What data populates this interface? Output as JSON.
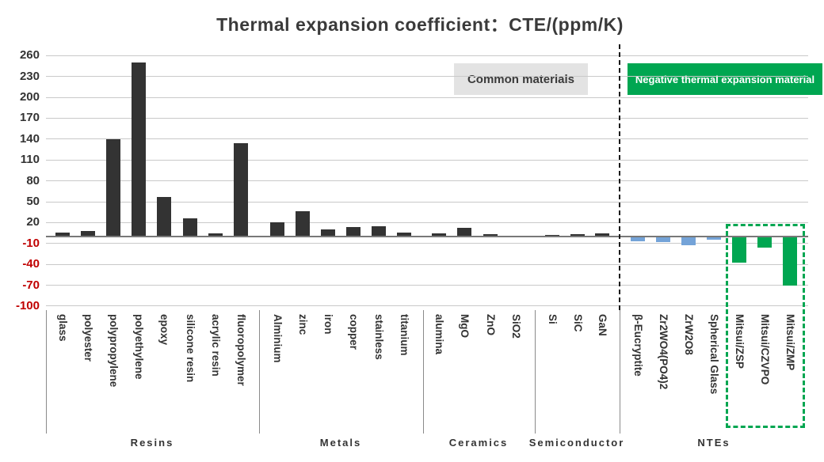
{
  "title": "Thermal expansion coefficient：CTE/(ppm/K)",
  "legend": {
    "common": {
      "label": "Common materials"
    },
    "negative": {
      "label": "Negative thermal expansion material"
    }
  },
  "colors": {
    "bar_dark": "#333333",
    "bar_blue": "#74a3d8",
    "bar_green": "#00a651",
    "grid": "#c9c9c9",
    "zero_line": "#787878",
    "tick_positive": "#333333",
    "tick_negative": "#c00000",
    "divider": "#8a8a8a",
    "dashed_divider": "#1a1a1a",
    "highlight_box": "#00a651",
    "legend_common_bg": "#e3e3e3",
    "legend_negative_bg": "#00a651"
  },
  "chart_data": {
    "type": "bar",
    "title": "Thermal expansion coefficient：CTE/(ppm/K)",
    "ylabel": "CTE (ppm/K)",
    "ylim": [
      -100,
      260
    ],
    "yticks": [
      260,
      230,
      200,
      170,
      140,
      110,
      80,
      50,
      20,
      -10,
      -40,
      -70,
      -100
    ],
    "grid": true,
    "legend_entries": [
      "Common materials",
      "Negative thermal expansion material"
    ],
    "groups": [
      {
        "label": "Resins",
        "bars": [
          {
            "label": "glass",
            "value": 6,
            "series": "common"
          },
          {
            "label": "polyester",
            "value": 8,
            "series": "common"
          },
          {
            "label": "polypropylene",
            "value": 140,
            "series": "common"
          },
          {
            "label": "polyethylene",
            "value": 250,
            "series": "common"
          },
          {
            "label": "epoxy",
            "value": 57,
            "series": "common"
          },
          {
            "label": "silicone resin",
            "value": 26,
            "series": "common"
          },
          {
            "label": "acrylic resin",
            "value": 4,
            "series": "common"
          },
          {
            "label": "fluoropolymer",
            "value": 134,
            "series": "common"
          }
        ]
      },
      {
        "label": "Metals",
        "bars": [
          {
            "label": "Alminium",
            "value": 20,
            "series": "common"
          },
          {
            "label": "zinc",
            "value": 36,
            "series": "common"
          },
          {
            "label": "iron",
            "value": 10,
            "series": "common"
          },
          {
            "label": "copper",
            "value": 14,
            "series": "common"
          },
          {
            "label": "stainless",
            "value": 15,
            "series": "common"
          },
          {
            "label": "titanium",
            "value": 6,
            "series": "common"
          }
        ]
      },
      {
        "label": "Ceramics",
        "bars": [
          {
            "label": "alumina",
            "value": 5,
            "series": "common"
          },
          {
            "label": "MgO",
            "value": 12,
            "series": "common"
          },
          {
            "label": "ZnO",
            "value": 3,
            "series": "common"
          },
          {
            "label": "SiO2",
            "value": 0.5,
            "series": "common"
          }
        ]
      },
      {
        "label": "Semiconductor",
        "bars": [
          {
            "label": "Si",
            "value": 2.5,
            "series": "common"
          },
          {
            "label": "SiC",
            "value": 3.5,
            "series": "common"
          },
          {
            "label": "GaN",
            "value": 4.5,
            "series": "common"
          }
        ]
      },
      {
        "label": "NTEs",
        "bars": [
          {
            "label": "β-Eucryptite",
            "value": -7,
            "series": "nte_blue"
          },
          {
            "label": "Zr2WO4(PO4)2",
            "value": -8,
            "series": "nte_blue"
          },
          {
            "label": "ZrW2O8",
            "value": -12,
            "series": "nte_blue"
          },
          {
            "label": "Spherical Glass",
            "value": -4,
            "series": "nte_blue"
          },
          {
            "label": "Mitsui/ZSP",
            "value": -37,
            "series": "nte_green"
          },
          {
            "label": "Mitsui/CZVPO",
            "value": -16,
            "series": "nte_green"
          },
          {
            "label": "Mitsui/ZMP",
            "value": -71,
            "series": "nte_green"
          }
        ]
      }
    ],
    "annotations": {
      "dashed_line_meaning": "separates common materials from negative thermal expansion materials",
      "highlight_box_items": [
        "Mitsui/ZSP",
        "Mitsui/CZVPO",
        "Mitsui/ZMP"
      ]
    }
  }
}
